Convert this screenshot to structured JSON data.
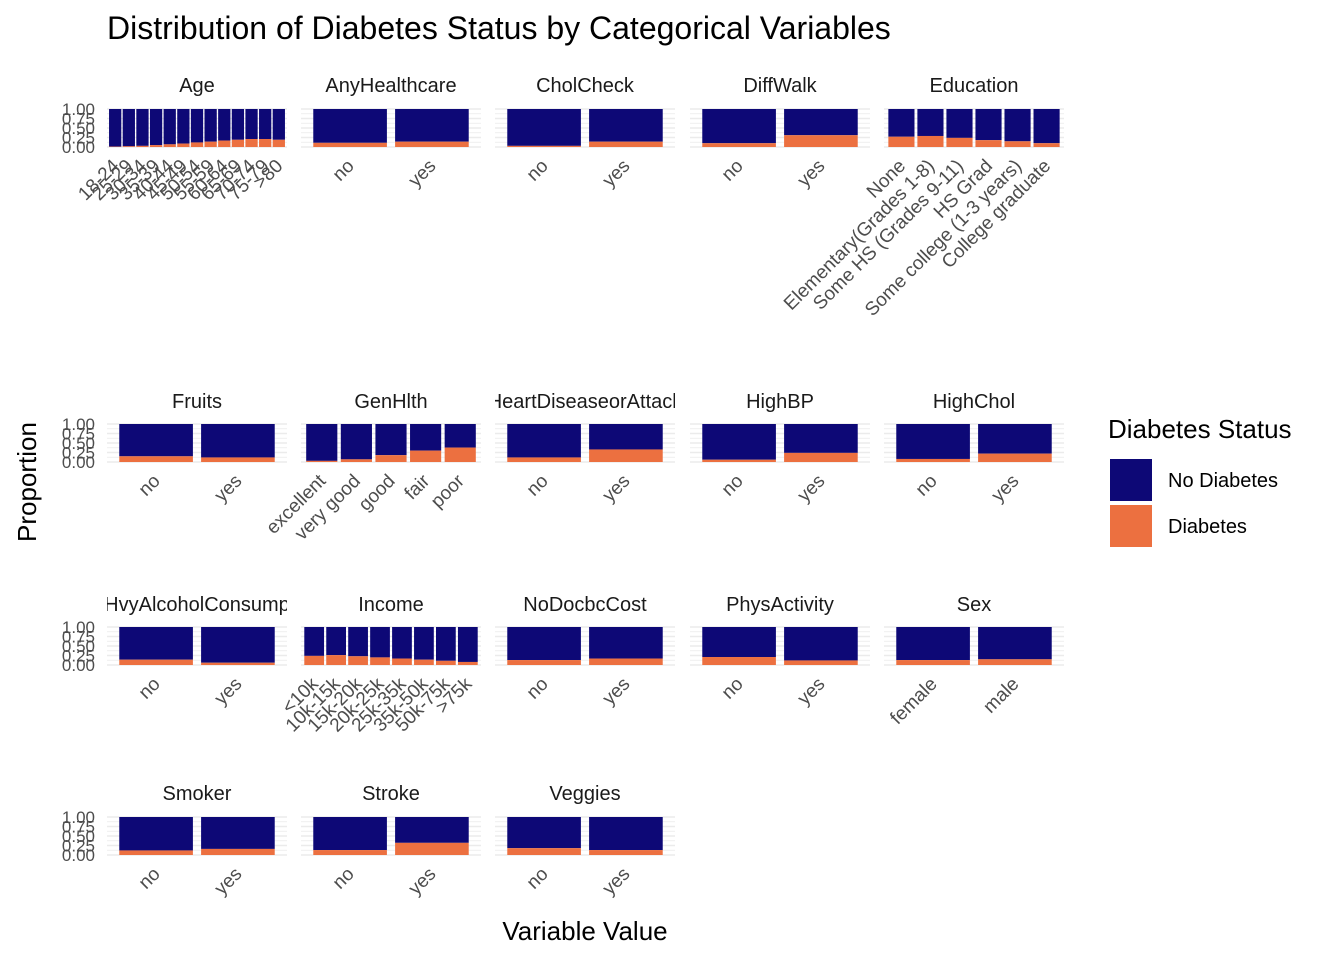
{
  "chart_data": {
    "type": "bar",
    "stacked": "proportion",
    "title": "Distribution of Diabetes Status by Categorical Variables",
    "xlabel": "Variable Value",
    "ylabel": "Proportion",
    "ylim": [
      0,
      1
    ],
    "y_ticks": [
      "0.00",
      "0.25",
      "0.50",
      "0.75",
      "1.00"
    ],
    "grid": true,
    "legend": {
      "title": "Diabetes Status",
      "position": "right",
      "entries": [
        {
          "name": "No Diabetes",
          "color": "#0d0876"
        },
        {
          "name": "Diabetes",
          "color": "#ec7040"
        }
      ]
    },
    "facets": [
      {
        "name": "Age",
        "categories": [
          "18-24",
          "25-29",
          "30-34",
          "35-39",
          "40-44",
          "45-49",
          "50-54",
          "55-59",
          "60-64",
          "65-69",
          "70-74",
          "75-79",
          ">80"
        ],
        "diabetes": [
          0.01,
          0.02,
          0.03,
          0.05,
          0.07,
          0.09,
          0.12,
          0.14,
          0.17,
          0.19,
          0.21,
          0.21,
          0.19
        ]
      },
      {
        "name": "AnyHealthcare",
        "categories": [
          "no",
          "yes"
        ],
        "diabetes": [
          0.11,
          0.14
        ]
      },
      {
        "name": "CholCheck",
        "categories": [
          "no",
          "yes"
        ],
        "diabetes": [
          0.03,
          0.14
        ]
      },
      {
        "name": "DiffWalk",
        "categories": [
          "no",
          "yes"
        ],
        "diabetes": [
          0.1,
          0.31
        ]
      },
      {
        "name": "Education",
        "categories": [
          "None",
          "Elementary(Grades 1-8)",
          "Some HS (Grades 9-11)",
          "HS Grad",
          "Some college (1-3 years)",
          "College graduate"
        ],
        "diabetes": [
          0.27,
          0.29,
          0.24,
          0.18,
          0.15,
          0.1
        ]
      },
      {
        "name": "Fruits",
        "categories": [
          "no",
          "yes"
        ],
        "diabetes": [
          0.15,
          0.12
        ]
      },
      {
        "name": "GenHlth",
        "categories": [
          "excellent",
          "very good",
          "good",
          "fair",
          "poor"
        ],
        "diabetes": [
          0.03,
          0.07,
          0.18,
          0.3,
          0.38
        ]
      },
      {
        "name": "HeartDiseaseorAttack",
        "categories": [
          "no",
          "yes"
        ],
        "diabetes": [
          0.12,
          0.33
        ]
      },
      {
        "name": "HighBP",
        "categories": [
          "no",
          "yes"
        ],
        "diabetes": [
          0.06,
          0.24
        ]
      },
      {
        "name": "HighChol",
        "categories": [
          "no",
          "yes"
        ],
        "diabetes": [
          0.08,
          0.22
        ]
      },
      {
        "name": "HvyAlcoholConsump",
        "categories": [
          "no",
          "yes"
        ],
        "diabetes": [
          0.14,
          0.06
        ]
      },
      {
        "name": "Income",
        "categories": [
          "<10k",
          "10k-15k",
          "15k-20k",
          "20k-25k",
          "25k-35k",
          "35k-50k",
          "50k-75k",
          ">75k"
        ],
        "diabetes": [
          0.24,
          0.26,
          0.23,
          0.2,
          0.17,
          0.14,
          0.11,
          0.08
        ]
      },
      {
        "name": "NoDocbcCost",
        "categories": [
          "no",
          "yes"
        ],
        "diabetes": [
          0.13,
          0.17
        ]
      },
      {
        "name": "PhysActivity",
        "categories": [
          "no",
          "yes"
        ],
        "diabetes": [
          0.21,
          0.12
        ]
      },
      {
        "name": "Sex",
        "categories": [
          "female",
          "male"
        ],
        "diabetes": [
          0.13,
          0.15
        ]
      },
      {
        "name": "Smoker",
        "categories": [
          "no",
          "yes"
        ],
        "diabetes": [
          0.12,
          0.16
        ]
      },
      {
        "name": "Stroke",
        "categories": [
          "no",
          "yes"
        ],
        "diabetes": [
          0.13,
          0.32
        ]
      },
      {
        "name": "Veggies",
        "categories": [
          "no",
          "yes"
        ],
        "diabetes": [
          0.18,
          0.13
        ]
      }
    ]
  }
}
